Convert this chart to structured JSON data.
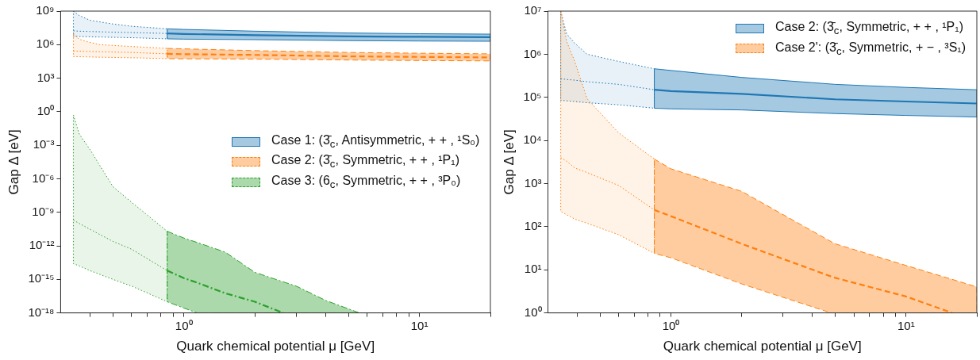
{
  "chart_data": [
    {
      "type": "line",
      "log": "xy",
      "xlabel": "Quark chemical potential μ [GeV]",
      "ylabel": "Gap Δ [eV]",
      "legend": "right",
      "xlim": [
        0.3,
        20
      ],
      "ylim": [
        1e-18,
        1000000000.0
      ],
      "xticks": [
        {
          "value": 0.4,
          "label": null
        },
        {
          "value": 0.5,
          "label": null
        },
        {
          "value": 0.6,
          "label": null
        },
        {
          "value": 0.7,
          "label": null
        },
        {
          "value": 0.8,
          "label": null
        },
        {
          "value": 0.9,
          "label": null
        },
        {
          "value": 1,
          "label": "10⁰"
        },
        {
          "value": 2,
          "label": null
        },
        {
          "value": 3,
          "label": null
        },
        {
          "value": 4,
          "label": null
        },
        {
          "value": 5,
          "label": null
        },
        {
          "value": 6,
          "label": null
        },
        {
          "value": 7,
          "label": null
        },
        {
          "value": 8,
          "label": null
        },
        {
          "value": 9,
          "label": null
        },
        {
          "value": 10,
          "label": "10¹"
        },
        {
          "value": 20,
          "label": null
        }
      ],
      "yticks": [
        {
          "value": 1e-18,
          "label": "10⁻¹⁸"
        },
        {
          "value": 1e-15,
          "label": "10⁻¹⁵"
        },
        {
          "value": 1e-12,
          "label": "10⁻¹²"
        },
        {
          "value": 1e-09,
          "label": "10⁻⁹"
        },
        {
          "value": 1e-06,
          "label": "10⁻⁶"
        },
        {
          "value": 0.001,
          "label": "10⁻³"
        },
        {
          "value": 1,
          "label": "10⁰"
        },
        {
          "value": 1000.0,
          "label": "10³"
        },
        {
          "value": 1000000.0,
          "label": "10⁶"
        },
        {
          "value": 1000000000.0,
          "label": "10⁹"
        }
      ],
      "series": [
        {
          "name": "Case 1: (3̄$_{c}$, Antisymmetric, + + , ¹S₀)",
          "color": "#1f77b4",
          "line_style": "solid",
          "x": [
            0.85,
            1,
            2,
            5,
            10,
            20
          ],
          "values": [
            10000000.0,
            9000000.0,
            7000000.0,
            5500000.0,
            5000000.0,
            4600000.0
          ],
          "lower": [
            3300000.0,
            3100000.0,
            2800000.0,
            2300000.0,
            2100000.0,
            2000000.0
          ],
          "upper": [
            26000000.0,
            23000000.0,
            16000000.0,
            11000000.0,
            9500000.0,
            8700000.0
          ]
        },
        {
          "name": "Case 2: (3̄$_{c}$, Symmetric, + + , ¹P₁)",
          "color": "#ff7f0e",
          "line_style": "dashed",
          "x": [
            0.85,
            1,
            2,
            5,
            10,
            20
          ],
          "values": [
            150000.0,
            140000.0,
            120000.0,
            90000.0,
            80000.0,
            72000.0
          ],
          "lower": [
            56000.0,
            54000.0,
            51000.0,
            42000.0,
            38000.0,
            35000.0
          ],
          "upper": [
            460000.0,
            420000.0,
            290000.0,
            200000.0,
            170000.0,
            150000.0
          ]
        },
        {
          "name": "Case 3: (6$_{c}$, Symmetric, + + , ³P₀)",
          "color": "#2ca02c",
          "line_style": "dashdot",
          "x": [
            0.85,
            1,
            1.14,
            1.5,
            2,
            2.64,
            3,
            4,
            5.56
          ],
          "values": [
            6e-15,
            1.3e-15,
            5e-16,
            5.7e-17,
            1e-17,
            1e-18,
            null,
            null,
            null
          ],
          "lower": [
            1e-17,
            2.7e-18,
            1e-18,
            1e-18,
            1e-18,
            1e-18,
            1e-18,
            1e-18,
            1e-18
          ],
          "upper": [
            2e-11,
            5e-12,
            2e-12,
            2.7e-13,
            4.3e-15,
            6e-16,
            2.5e-16,
            1.3e-17,
            1e-18
          ]
        },
        {
          "color": "#1f77b4",
          "line_style": "dotted",
          "x": [
            0.34,
            0.36,
            0.4,
            0.5,
            0.6,
            0.85
          ],
          "values": [
            17000000.0,
            16000000.0,
            15000000.0,
            13000000.0,
            12000000.0,
            10000000.0
          ],
          "lower": [
            5500000.0,
            5300000.0,
            5000000.0,
            4500000.0,
            4200000.0,
            3300000.0
          ],
          "upper": [
            1000000000.0,
            400000000.0,
            150000000.0,
            70000000.0,
            44000000.0,
            26000000.0
          ]
        },
        {
          "color": "#ff7f0e",
          "line_style": "dotted",
          "x": [
            0.34,
            0.36,
            0.39,
            0.44,
            0.6,
            0.85
          ],
          "values": [
            270000.0,
            260000.0,
            250000.0,
            230000.0,
            200000.0,
            150000.0
          ],
          "lower": [
            85000.0,
            83000.0,
            80000.0,
            75000.0,
            67000.0,
            56000.0
          ],
          "upper": [
            10000000.0,
            3000000.0,
            1800000.0,
            1000000.0,
            680000.0,
            460000.0
          ]
        },
        {
          "color": "#2ca02c",
          "line_style": "dotted",
          "x": [
            0.34,
            0.36,
            0.4,
            0.5,
            0.6,
            0.85
          ],
          "values": [
            2e-10,
            1e-10,
            3e-11,
            2.5e-12,
            5e-13,
            6e-15
          ],
          "lower": [
            2.5e-14,
            1.6e-14,
            6e-15,
            1e-15,
            2.5e-16,
            1e-17
          ],
          "upper": [
            0.5,
            0.01,
            0.0004,
            2e-07,
            8e-09,
            2e-11
          ]
        }
      ]
    },
    {
      "type": "line",
      "log": "xy",
      "xlabel": "Quark chemical potential μ [GeV]",
      "ylabel": "Gap Δ [eV]",
      "legend": "top right",
      "xlim": [
        0.3,
        20
      ],
      "ylim": [
        1,
        10000000.0
      ],
      "xticks": [
        {
          "value": 0.4,
          "label": null
        },
        {
          "value": 0.5,
          "label": null
        },
        {
          "value": 0.6,
          "label": null
        },
        {
          "value": 0.7,
          "label": null
        },
        {
          "value": 0.8,
          "label": null
        },
        {
          "value": 0.9,
          "label": null
        },
        {
          "value": 1,
          "label": "10⁰"
        },
        {
          "value": 2,
          "label": null
        },
        {
          "value": 3,
          "label": null
        },
        {
          "value": 4,
          "label": null
        },
        {
          "value": 5,
          "label": null
        },
        {
          "value": 6,
          "label": null
        },
        {
          "value": 7,
          "label": null
        },
        {
          "value": 8,
          "label": null
        },
        {
          "value": 9,
          "label": null
        },
        {
          "value": 10,
          "label": "10¹"
        },
        {
          "value": 20,
          "label": null
        }
      ],
      "yticks": [
        {
          "value": 1,
          "label": "10⁰"
        },
        {
          "value": 10,
          "label": "10¹"
        },
        {
          "value": 100,
          "label": "10²"
        },
        {
          "value": 1000.0,
          "label": "10³"
        },
        {
          "value": 10000.0,
          "label": "10⁴"
        },
        {
          "value": 100000.0,
          "label": "10⁵"
        },
        {
          "value": 1000000.0,
          "label": "10⁶"
        },
        {
          "value": 10000000.0,
          "label": "10⁷"
        }
      ],
      "series": [
        {
          "name": "Case 2: (3̄$_{c}$, Symmetric, + + , ¹P₁)",
          "color": "#1f77b4",
          "line_style": "solid",
          "x": [
            0.85,
            1,
            2,
            5,
            10,
            20
          ],
          "values": [
            150000.0,
            140000.0,
            120000.0,
            90000.0,
            80000.0,
            72000.0
          ],
          "lower": [
            56000.0,
            54000.0,
            51000.0,
            42000.0,
            38000.0,
            35000.0
          ],
          "upper": [
            460000.0,
            420000.0,
            290000.0,
            200000.0,
            170000.0,
            150000.0
          ]
        },
        {
          "name": "Case 2': (3̄$_{c}$, Symmetric, + − , ³S₁)",
          "color": "#ff7f0e",
          "line_style": "dashed",
          "x": [
            0.85,
            1,
            2,
            4.8,
            5,
            10,
            15.7,
            20
          ],
          "values": [
            245,
            175,
            40,
            7,
            6.5,
            2.4,
            1,
            null
          ],
          "lower": [
            24,
            19,
            4.7,
            1,
            1,
            1,
            1,
            1
          ],
          "upper": [
            3700.0,
            2200.0,
            660,
            45,
            40,
            12.6,
            6,
            4
          ]
        },
        {
          "color": "#1f77b4",
          "line_style": "dotted",
          "x": [
            0.34,
            0.36,
            0.39,
            0.44,
            0.6,
            0.85
          ],
          "values": [
            270000.0,
            260000.0,
            250000.0,
            230000.0,
            200000.0,
            150000.0
          ],
          "lower": [
            85000.0,
            83000.0,
            80000.0,
            75000.0,
            67000.0,
            56000.0
          ],
          "upper": [
            10000000.0,
            3000000.0,
            1800000.0,
            1000000.0,
            680000.0,
            460000.0
          ]
        },
        {
          "color": "#ff7f0e",
          "line_style": "dotted",
          "x": [
            0.34,
            0.36,
            0.39,
            0.44,
            0.6,
            0.85
          ],
          "values": [
            4000.0,
            3300.0,
            2300.0,
            1800.0,
            900,
            245
          ],
          "lower": [
            225,
            190,
            150,
            120,
            65,
            24
          ],
          "upper": [
            10000000.0,
            2000000.0,
            680000.0,
            93000.0,
            15000.0,
            3700.0
          ]
        }
      ]
    }
  ]
}
